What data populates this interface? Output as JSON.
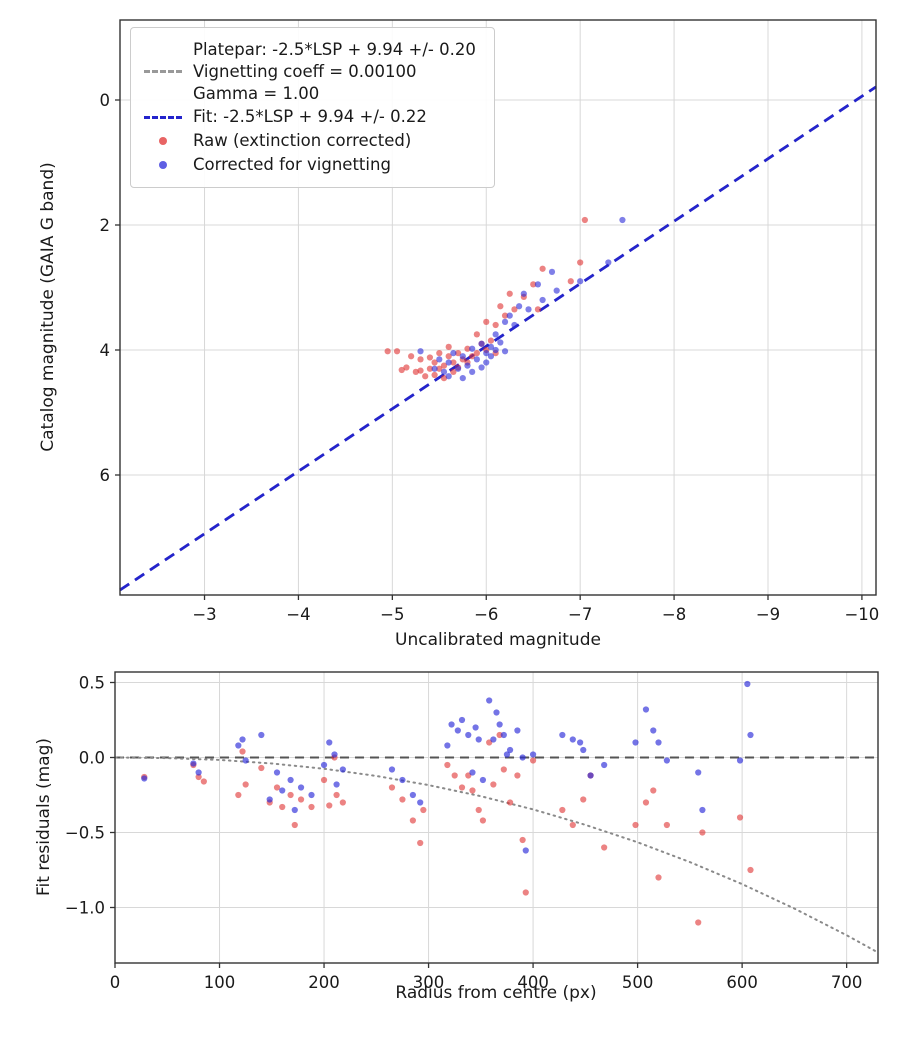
{
  "colors": {
    "raw_red": "#e03030",
    "corrected_blue": "#2a2ad9",
    "fit_blue": "#2424cc",
    "platepar_gray": "#999999",
    "zero_gray": "#555555",
    "model_dotted_gray": "#8a8a8a",
    "grid": "#d8d8d8",
    "axis": "#333333"
  },
  "top_chart": {
    "type": "scatter",
    "xlabel": "Uncalibrated magnitude",
    "ylabel": "Catalog magnitude (GAIA G band)",
    "xlim": [
      -2.1,
      -10.15
    ],
    "ylim": [
      -1.28,
      7.92
    ],
    "xticks": [
      {
        "v": -3,
        "label": "−3"
      },
      {
        "v": -4,
        "label": "−4"
      },
      {
        "v": -5,
        "label": "−5"
      },
      {
        "v": -6,
        "label": "−6"
      },
      {
        "v": -7,
        "label": "−7"
      },
      {
        "v": -8,
        "label": "−8"
      },
      {
        "v": -9,
        "label": "−9"
      },
      {
        "v": -10,
        "label": "−10"
      }
    ],
    "yticks": [
      {
        "v": 0,
        "label": "0"
      },
      {
        "v": 2,
        "label": "2"
      },
      {
        "v": 4,
        "label": "4"
      },
      {
        "v": 6,
        "label": "6"
      }
    ],
    "legend": [
      {
        "marker": "dash",
        "color": "#999999",
        "text_lines": [
          "Platepar: -2.5*LSP + 9.94 +/- 0.20",
          "Vignetting coeff = 0.00100",
          "Gamma = 1.00"
        ]
      },
      {
        "marker": "dash",
        "color": "#2424cc",
        "text_lines": [
          "Fit: -2.5*LSP + 9.94 +/- 0.22"
        ]
      },
      {
        "marker": "dot",
        "color": "#e03030",
        "text_lines": [
          "Raw (extinction corrected)"
        ]
      },
      {
        "marker": "dot",
        "color": "#2a2ad9",
        "text_lines": [
          "Corrected for vignetting"
        ]
      }
    ],
    "lines": [
      {
        "name": "platepar-line",
        "color": "#999999",
        "width": 2.6,
        "dash": "11,7",
        "points": [
          [
            -2.1,
            7.84
          ],
          [
            -10.15,
            -0.21
          ]
        ]
      },
      {
        "name": "fit-line",
        "color": "#2424cc",
        "width": 2.8,
        "dash": "11,7",
        "points": [
          [
            -2.1,
            7.84
          ],
          [
            -10.15,
            -0.21
          ]
        ]
      }
    ],
    "series": [
      {
        "name": "raw-point",
        "color": "#e03030",
        "alpha": 0.6,
        "r": 3.1,
        "points": [
          [
            -4.95,
            4.02
          ],
          [
            -5.05,
            4.02
          ],
          [
            -5.1,
            4.32
          ],
          [
            -5.15,
            4.28
          ],
          [
            -5.2,
            4.1
          ],
          [
            -5.25,
            4.35
          ],
          [
            -5.3,
            4.33
          ],
          [
            -5.3,
            4.15
          ],
          [
            -5.35,
            4.42
          ],
          [
            -5.4,
            4.3
          ],
          [
            -5.4,
            4.12
          ],
          [
            -5.45,
            4.4
          ],
          [
            -5.45,
            4.2
          ],
          [
            -5.5,
            4.3
          ],
          [
            -5.5,
            4.05
          ],
          [
            -5.55,
            4.25
          ],
          [
            -5.55,
            4.45
          ],
          [
            -5.6,
            4.1
          ],
          [
            -5.6,
            3.95
          ],
          [
            -5.65,
            4.2
          ],
          [
            -5.65,
            4.35
          ],
          [
            -5.7,
            4.05
          ],
          [
            -5.7,
            4.28
          ],
          [
            -5.75,
            4.15
          ],
          [
            -5.8,
            3.98
          ],
          [
            -5.8,
            4.2
          ],
          [
            -5.85,
            4.1
          ],
          [
            -5.9,
            3.75
          ],
          [
            -5.9,
            4.05
          ],
          [
            -5.95,
            3.9
          ],
          [
            -6.0,
            4.0
          ],
          [
            -6.0,
            3.55
          ],
          [
            -6.05,
            3.85
          ],
          [
            -6.1,
            3.6
          ],
          [
            -6.1,
            4.05
          ],
          [
            -6.15,
            3.3
          ],
          [
            -6.2,
            3.45
          ],
          [
            -6.25,
            3.1
          ],
          [
            -6.3,
            3.35
          ],
          [
            -6.4,
            3.15
          ],
          [
            -6.5,
            2.95
          ],
          [
            -6.55,
            3.35
          ],
          [
            -6.6,
            2.7
          ],
          [
            -6.9,
            2.9
          ],
          [
            -7.0,
            2.6
          ],
          [
            -7.05,
            1.92
          ]
        ]
      },
      {
        "name": "corrected-point",
        "color": "#2a2ad9",
        "alpha": 0.6,
        "r": 3.1,
        "points": [
          [
            -5.3,
            4.02
          ],
          [
            -5.45,
            4.3
          ],
          [
            -5.5,
            4.15
          ],
          [
            -5.55,
            4.35
          ],
          [
            -5.6,
            4.42
          ],
          [
            -5.6,
            4.2
          ],
          [
            -5.65,
            4.05
          ],
          [
            -5.7,
            4.3
          ],
          [
            -5.75,
            4.45
          ],
          [
            -5.75,
            4.1
          ],
          [
            -5.8,
            4.25
          ],
          [
            -5.85,
            3.98
          ],
          [
            -5.85,
            4.35
          ],
          [
            -5.9,
            4.15
          ],
          [
            -5.95,
            4.28
          ],
          [
            -5.95,
            3.9
          ],
          [
            -6.0,
            4.05
          ],
          [
            -6.0,
            4.2
          ],
          [
            -6.05,
            3.95
          ],
          [
            -6.05,
            4.1
          ],
          [
            -6.1,
            3.75
          ],
          [
            -6.1,
            4.0
          ],
          [
            -6.15,
            3.88
          ],
          [
            -6.2,
            3.55
          ],
          [
            -6.2,
            4.02
          ],
          [
            -6.25,
            3.45
          ],
          [
            -6.3,
            3.6
          ],
          [
            -6.35,
            3.3
          ],
          [
            -6.4,
            3.1
          ],
          [
            -6.45,
            3.35
          ],
          [
            -6.55,
            2.95
          ],
          [
            -6.6,
            3.2
          ],
          [
            -6.7,
            2.75
          ],
          [
            -6.75,
            3.05
          ],
          [
            -7.0,
            2.9
          ],
          [
            -7.3,
            2.6
          ],
          [
            -7.45,
            1.92
          ]
        ]
      }
    ]
  },
  "bottom_chart": {
    "type": "scatter",
    "xlabel": "Radius from centre (px)",
    "ylabel": "Fit residuals (mag)",
    "xlim": [
      0,
      730
    ],
    "ylim": [
      0.57,
      -1.37
    ],
    "xticks": [
      {
        "v": 0,
        "label": "0"
      },
      {
        "v": 100,
        "label": "100"
      },
      {
        "v": 200,
        "label": "200"
      },
      {
        "v": 300,
        "label": "300"
      },
      {
        "v": 400,
        "label": "400"
      },
      {
        "v": 500,
        "label": "500"
      },
      {
        "v": 600,
        "label": "600"
      },
      {
        "v": 700,
        "label": "700"
      }
    ],
    "yticks": [
      {
        "v": 0.5,
        "label": "0.5"
      },
      {
        "v": 0.0,
        "label": "0.0"
      },
      {
        "v": -0.5,
        "label": "−0.5"
      },
      {
        "v": -1.0,
        "label": "−1.0"
      }
    ],
    "lines": [
      {
        "name": "zero-residual-line",
        "color": "#555555",
        "width": 2.0,
        "dash": "9,6",
        "points": [
          [
            0,
            0
          ],
          [
            730,
            0
          ]
        ]
      },
      {
        "name": "vignetting-model-curve",
        "color": "#8a8a8a",
        "width": 2.0,
        "dash": "1.5,4.5",
        "cap": "round",
        "points": [
          [
            0,
            0
          ],
          [
            50,
            -0.004
          ],
          [
            100,
            -0.016
          ],
          [
            150,
            -0.04
          ],
          [
            200,
            -0.075
          ],
          [
            250,
            -0.123
          ],
          [
            300,
            -0.184
          ],
          [
            350,
            -0.258
          ],
          [
            400,
            -0.346
          ],
          [
            450,
            -0.449
          ],
          [
            500,
            -0.565
          ],
          [
            550,
            -0.697
          ],
          [
            600,
            -0.844
          ],
          [
            650,
            -1.007
          ],
          [
            700,
            -1.185
          ],
          [
            730,
            -1.3
          ]
        ]
      }
    ],
    "series": [
      {
        "name": "raw-residual-point",
        "color": "#e03030",
        "alpha": 0.6,
        "r": 3.1,
        "points": [
          [
            28,
            -0.13
          ],
          [
            75,
            -0.05
          ],
          [
            80,
            -0.13
          ],
          [
            85,
            -0.16
          ],
          [
            118,
            -0.25
          ],
          [
            122,
            0.04
          ],
          [
            125,
            -0.18
          ],
          [
            140,
            -0.07
          ],
          [
            148,
            -0.3
          ],
          [
            155,
            -0.2
          ],
          [
            160,
            -0.33
          ],
          [
            168,
            -0.25
          ],
          [
            172,
            -0.45
          ],
          [
            178,
            -0.28
          ],
          [
            188,
            -0.33
          ],
          [
            200,
            -0.15
          ],
          [
            205,
            -0.32
          ],
          [
            210,
            0.0
          ],
          [
            212,
            -0.25
          ],
          [
            218,
            -0.3
          ],
          [
            265,
            -0.2
          ],
          [
            275,
            -0.28
          ],
          [
            285,
            -0.42
          ],
          [
            292,
            -0.57
          ],
          [
            295,
            -0.35
          ],
          [
            318,
            -0.05
          ],
          [
            325,
            -0.12
          ],
          [
            332,
            -0.2
          ],
          [
            338,
            -0.12
          ],
          [
            342,
            -0.22
          ],
          [
            348,
            -0.35
          ],
          [
            352,
            -0.42
          ],
          [
            358,
            0.1
          ],
          [
            362,
            -0.18
          ],
          [
            368,
            0.15
          ],
          [
            372,
            -0.08
          ],
          [
            378,
            -0.3
          ],
          [
            385,
            -0.12
          ],
          [
            390,
            -0.55
          ],
          [
            393,
            -0.9
          ],
          [
            400,
            -0.02
          ],
          [
            428,
            -0.35
          ],
          [
            438,
            -0.45
          ],
          [
            448,
            -0.28
          ],
          [
            455,
            -0.12
          ],
          [
            468,
            -0.6
          ],
          [
            498,
            -0.45
          ],
          [
            508,
            -0.3
          ],
          [
            515,
            -0.22
          ],
          [
            520,
            -0.8
          ],
          [
            528,
            -0.45
          ],
          [
            558,
            -1.1
          ],
          [
            562,
            -0.5
          ],
          [
            598,
            -0.4
          ],
          [
            608,
            -0.75
          ]
        ]
      },
      {
        "name": "corrected-residual-point",
        "color": "#2a2ad9",
        "alpha": 0.65,
        "r": 3.1,
        "points": [
          [
            28,
            -0.14
          ],
          [
            75,
            -0.04
          ],
          [
            80,
            -0.1
          ],
          [
            118,
            0.08
          ],
          [
            122,
            0.12
          ],
          [
            125,
            -0.02
          ],
          [
            140,
            0.15
          ],
          [
            148,
            -0.28
          ],
          [
            155,
            -0.1
          ],
          [
            160,
            -0.22
          ],
          [
            168,
            -0.15
          ],
          [
            172,
            -0.35
          ],
          [
            178,
            -0.2
          ],
          [
            188,
            -0.25
          ],
          [
            200,
            -0.05
          ],
          [
            205,
            0.1
          ],
          [
            210,
            0.02
          ],
          [
            212,
            -0.18
          ],
          [
            218,
            -0.08
          ],
          [
            265,
            -0.08
          ],
          [
            275,
            -0.15
          ],
          [
            285,
            -0.25
          ],
          [
            292,
            -0.3
          ],
          [
            318,
            0.08
          ],
          [
            322,
            0.22
          ],
          [
            328,
            0.18
          ],
          [
            332,
            0.25
          ],
          [
            338,
            0.15
          ],
          [
            342,
            -0.1
          ],
          [
            345,
            0.2
          ],
          [
            348,
            0.12
          ],
          [
            352,
            -0.15
          ],
          [
            358,
            0.38
          ],
          [
            362,
            0.12
          ],
          [
            365,
            0.3
          ],
          [
            368,
            0.22
          ],
          [
            372,
            0.15
          ],
          [
            375,
            0.02
          ],
          [
            378,
            0.05
          ],
          [
            385,
            0.18
          ],
          [
            390,
            0.0
          ],
          [
            393,
            -0.62
          ],
          [
            400,
            0.02
          ],
          [
            428,
            0.15
          ],
          [
            438,
            0.12
          ],
          [
            445,
            0.1
          ],
          [
            448,
            0.05
          ],
          [
            455,
            -0.12
          ],
          [
            468,
            -0.05
          ],
          [
            498,
            0.1
          ],
          [
            508,
            0.32
          ],
          [
            515,
            0.18
          ],
          [
            520,
            0.1
          ],
          [
            528,
            -0.02
          ],
          [
            558,
            -0.1
          ],
          [
            562,
            -0.35
          ],
          [
            598,
            -0.02
          ],
          [
            605,
            0.49
          ],
          [
            608,
            0.15
          ]
        ]
      }
    ]
  }
}
